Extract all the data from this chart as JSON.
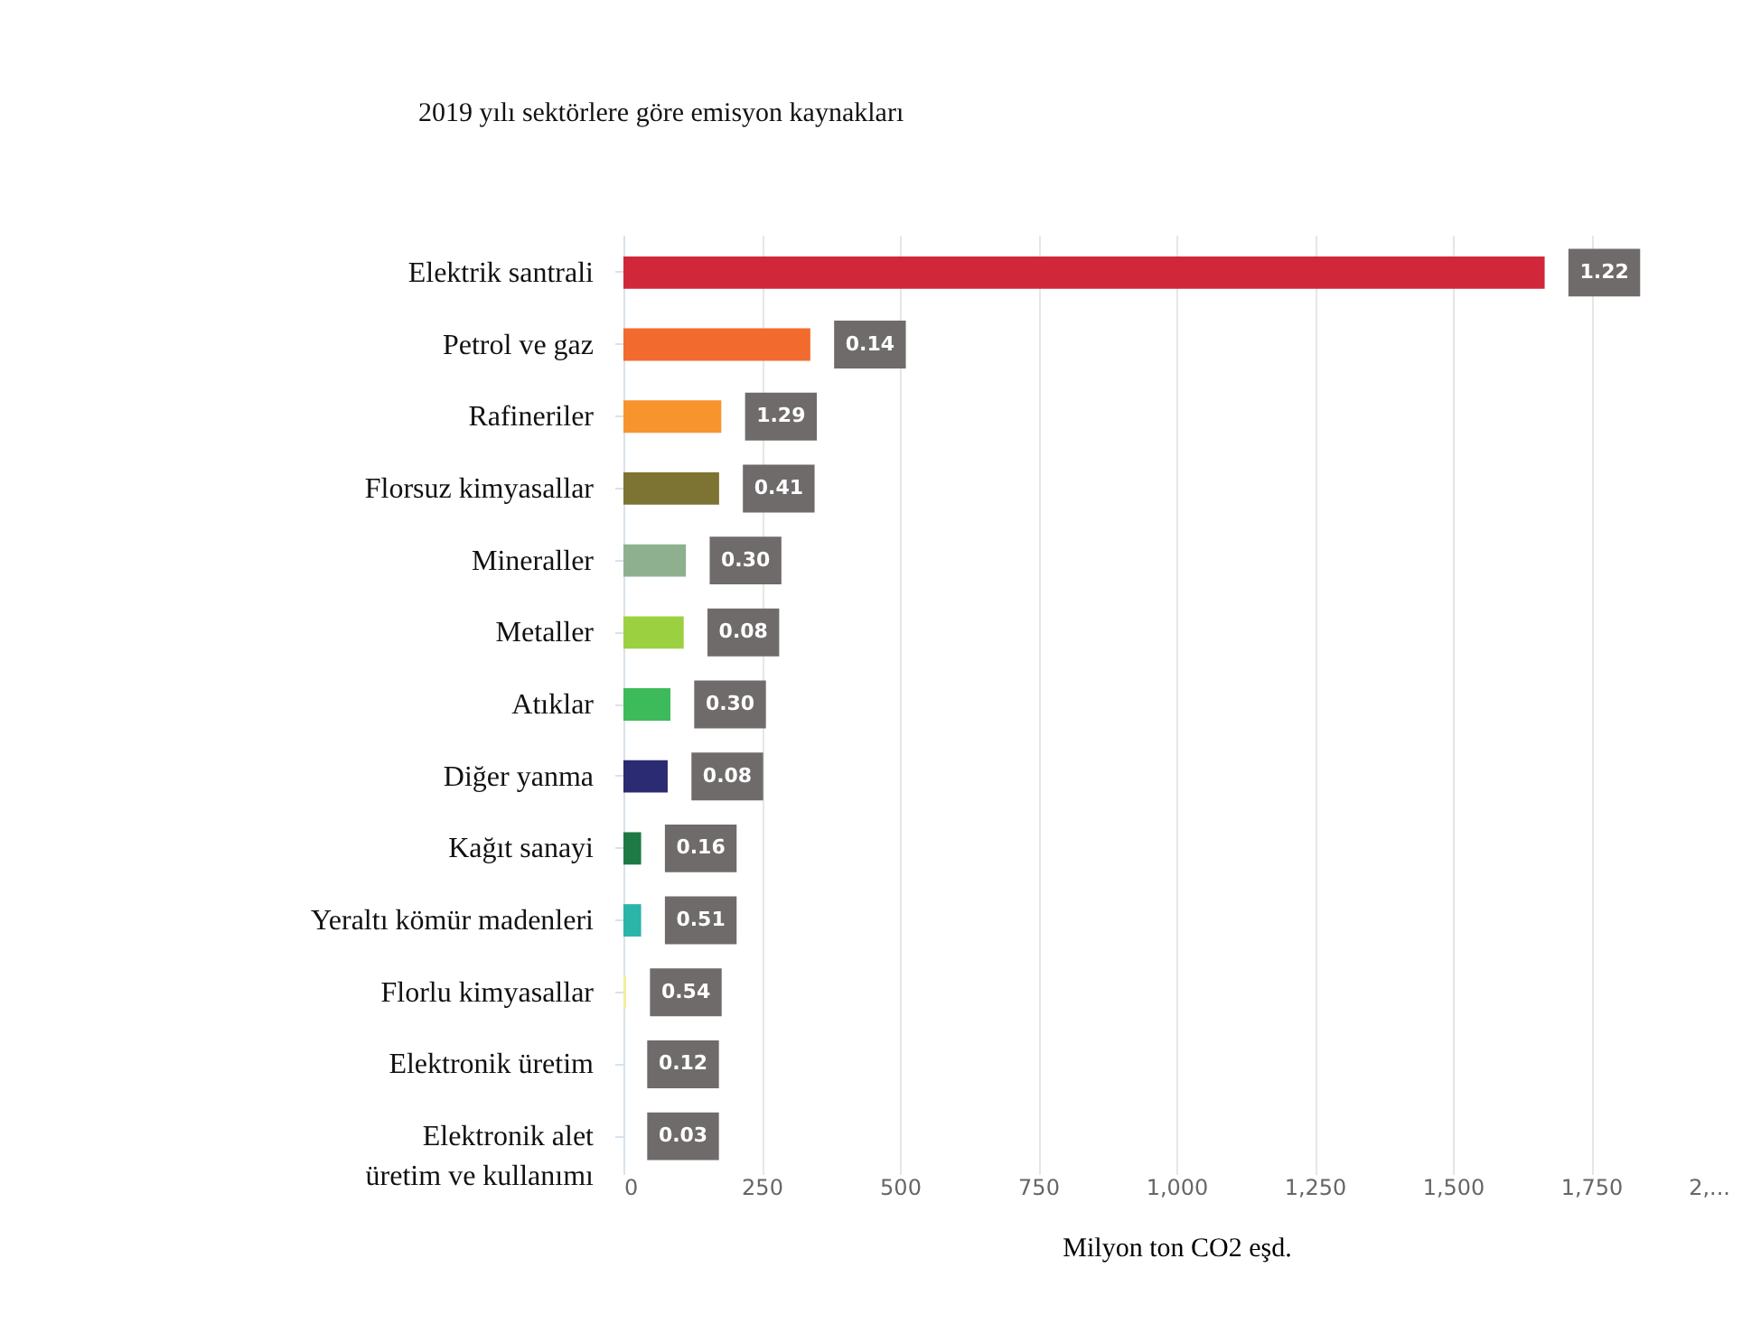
{
  "chart_data": {
    "type": "bar",
    "orientation": "horizontal",
    "title": "2019 yılı sektörlere göre emisyon kaynakları",
    "xlabel": "Milyon ton CO2 eşd.",
    "categories": [
      "Elektrik santrali",
      "Petrol ve gaz",
      "Rafineriler",
      "Florsuz kimyasallar",
      "Mineraller",
      "Metaller",
      "Atıklar",
      "Diğer yanma",
      "Kağıt sanayi",
      "Yeraltı kömür madenleri",
      "Florlu kimyasallar",
      "Elektronik üretim",
      "Elektronik alet\nüretim ve kullanımı"
    ],
    "values": [
      1666,
      338,
      177,
      173,
      113,
      109,
      85,
      80,
      32,
      32,
      5,
      0,
      0
    ],
    "colors": [
      "#d0283a",
      "#f26a2e",
      "#f7942d",
      "#7d7332",
      "#8fb08f",
      "#9bd140",
      "#3dbb5a",
      "#2a2b72",
      "#1e7a44",
      "#2bb5a8",
      "#f2ee9e",
      "#e8e8e8",
      "#e8e8e8"
    ],
    "annotations": [
      {
        "text": "1.22",
        "x": 1666,
        "y": "Elektrik santrali"
      },
      {
        "text": "0.14",
        "x": 338,
        "y": "Petrol ve gaz"
      },
      {
        "text": "1.29",
        "x": 177,
        "y": "Rafineriler"
      },
      {
        "text": "0.41",
        "x": 173,
        "y": "Florsuz kimyasallar"
      },
      {
        "text": "0.30",
        "x": 113,
        "y": "Mineraller"
      },
      {
        "text": "0.08",
        "x": 109,
        "y": "Metaller"
      },
      {
        "text": "0.30",
        "x": 85,
        "y": "Atıklar"
      },
      {
        "text": "0.08",
        "x": 80,
        "y": "Diğer yanma"
      },
      {
        "text": "0.16",
        "x": 32,
        "y": "Kağıt sanayi"
      },
      {
        "text": "0.51",
        "x": 32,
        "y": "Yeraltı kömür madenleri"
      },
      {
        "text": "0.54",
        "x": 5,
        "y": "Florlu kimyasallar"
      },
      {
        "text": "0.12",
        "x": 0,
        "y": "Elektronik üretim"
      },
      {
        "text": "0.03",
        "x": 0,
        "y": "Elektronik alet\nüretim ve kullanımı"
      }
    ],
    "xlim": [
      0,
      2000
    ],
    "xticks": [
      0,
      250,
      500,
      750,
      {
        "value": 1000,
        "label": "1,000"
      },
      {
        "value": 1250,
        "label": "1,250"
      },
      {
        "value": 1500,
        "label": "1,500"
      },
      {
        "value": 1750,
        "label": "1,750"
      },
      {
        "value": 2000,
        "label": "2,..."
      }
    ],
    "grid": "x"
  }
}
